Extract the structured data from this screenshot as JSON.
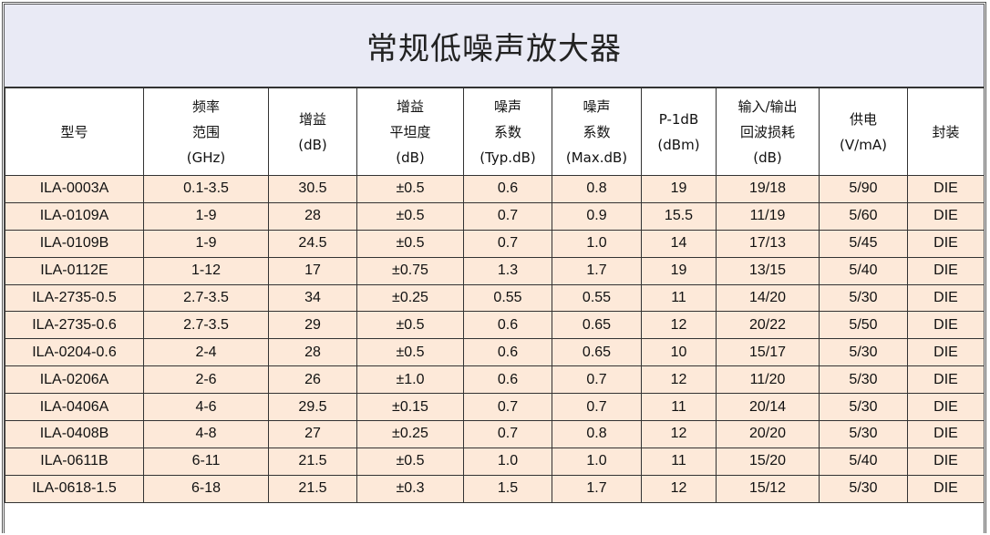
{
  "title": "常规低噪声放大器",
  "colors": {
    "title_bg": "#e9eaf5",
    "row_bg": "#fde9d9",
    "border": "#333333"
  },
  "headers": [
    [
      "型号"
    ],
    [
      "频率",
      "范围",
      "(GHz)"
    ],
    [
      "增益",
      "(dB)"
    ],
    [
      "增益",
      "平坦度",
      "(dB)"
    ],
    [
      "噪声",
      "系数",
      "(Typ.dB)"
    ],
    [
      "噪声",
      "系数",
      "(Max.dB)"
    ],
    [
      "P-1dB",
      "(dBm)"
    ],
    [
      "输入/输出",
      "回波损耗",
      "(dB)"
    ],
    [
      "供电",
      "(V/mA)"
    ],
    [
      "封装"
    ]
  ],
  "rows": [
    [
      "ILA-0003A",
      "0.1-3.5",
      "30.5",
      "±0.5",
      "0.6",
      "0.8",
      "19",
      "19/18",
      "5/90",
      "DIE"
    ],
    [
      "ILA-0109A",
      "1-9",
      "28",
      "±0.5",
      "0.7",
      "0.9",
      "15.5",
      "11/19",
      "5/60",
      "DIE"
    ],
    [
      "ILA-0109B",
      "1-9",
      "24.5",
      "±0.5",
      "0.7",
      "1.0",
      "14",
      "17/13",
      "5/45",
      "DIE"
    ],
    [
      "ILA-0112E",
      "1-12",
      "17",
      "±0.75",
      "1.3",
      "1.7",
      "19",
      "13/15",
      "5/40",
      "DIE"
    ],
    [
      "ILA-2735-0.5",
      "2.7-3.5",
      "34",
      "±0.25",
      "0.55",
      "0.55",
      "11",
      "14/20",
      "5/30",
      "DIE"
    ],
    [
      "ILA-2735-0.6",
      "2.7-3.5",
      "29",
      "±0.5",
      "0.6",
      "0.65",
      "12",
      "20/22",
      "5/50",
      "DIE"
    ],
    [
      "ILA-0204-0.6",
      "2-4",
      "28",
      "±0.5",
      "0.6",
      "0.65",
      "10",
      "15/17",
      "5/30",
      "DIE"
    ],
    [
      "ILA-0206A",
      "2-6",
      "26",
      "±1.0",
      "0.6",
      "0.7",
      "12",
      "11/20",
      "5/30",
      "DIE"
    ],
    [
      "ILA-0406A",
      "4-6",
      "29.5",
      "±0.15",
      "0.7",
      "0.7",
      "11",
      "20/14",
      "5/30",
      "DIE"
    ],
    [
      "ILA-0408B",
      "4-8",
      "27",
      "±0.25",
      "0.7",
      "0.8",
      "12",
      "20/20",
      "5/30",
      "DIE"
    ],
    [
      "ILA-0611B",
      "6-11",
      "21.5",
      "±0.5",
      "1.0",
      "1.0",
      "11",
      "15/20",
      "5/40",
      "DIE"
    ],
    [
      "ILA-0618-1.5",
      "6-18",
      "21.5",
      "±0.3",
      "1.5",
      "1.7",
      "12",
      "15/12",
      "5/30",
      "DIE"
    ]
  ]
}
